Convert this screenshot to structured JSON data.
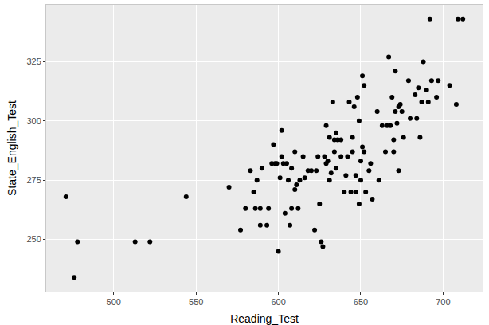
{
  "chart_data": {
    "type": "scatter",
    "x_label": "Reading_Test",
    "y_label": "State_English_Test",
    "x": [
      471,
      476,
      478,
      513,
      522,
      544,
      570,
      577,
      580,
      583,
      585,
      586,
      587,
      589,
      589,
      590,
      593,
      594,
      596,
      597,
      598,
      599,
      600,
      601,
      602,
      602,
      603,
      604,
      605,
      606,
      607,
      608,
      608,
      610,
      610,
      611,
      612,
      613,
      615,
      616,
      618,
      620,
      622,
      623,
      624,
      625,
      626,
      627,
      628,
      629,
      629,
      630,
      631,
      631,
      632,
      633,
      634,
      634,
      635,
      635,
      636,
      638,
      638,
      640,
      641,
      642,
      643,
      644,
      645,
      645,
      646,
      647,
      647,
      648,
      649,
      649,
      650,
      650,
      651,
      651,
      652,
      652,
      653,
      655,
      656,
      657,
      660,
      661,
      663,
      665,
      666,
      667,
      668,
      669,
      670,
      670,
      671,
      671,
      672,
      673,
      673,
      674,
      675,
      676,
      679,
      680,
      683,
      684,
      685,
      686,
      687,
      688,
      690,
      691,
      692,
      693,
      696,
      697,
      704,
      708,
      709,
      712
    ],
    "values": [
      268,
      234,
      249,
      249,
      249,
      268,
      272,
      254,
      263,
      279,
      270,
      263,
      275,
      256,
      263,
      280,
      256,
      263,
      282,
      290,
      282,
      282,
      245,
      276,
      285,
      296,
      282,
      261,
      282,
      275,
      256,
      280,
      263,
      271,
      287,
      273,
      263,
      275,
      285,
      276,
      279,
      279,
      254,
      279,
      285,
      265,
      249,
      247,
      285,
      298,
      282,
      283,
      275,
      293,
      278,
      308,
      292,
      287,
      295,
      280,
      292,
      285,
      292,
      270,
      277,
      285,
      308,
      270,
      287,
      293,
      306,
      270,
      277,
      310,
      265,
      300,
      275,
      283,
      319,
      289,
      315,
      287,
      270,
      279,
      282,
      267,
      304,
      275,
      298,
      287,
      298,
      327,
      298,
      310,
      292,
      287,
      321,
      304,
      299,
      279,
      306,
      307,
      304,
      293,
      317,
      301,
      311,
      301,
      314,
      293,
      308,
      325,
      313,
      308,
      343,
      317,
      310,
      317,
      315,
      307,
      343,
      343
    ],
    "color": "#000000",
    "marker": "circle",
    "xlim": [
      459,
      724
    ],
    "ylim": [
      228,
      349
    ],
    "xticks": [
      500,
      550,
      600,
      650,
      700
    ],
    "yticks": [
      250,
      275,
      300,
      325
    ],
    "grid": true
  }
}
